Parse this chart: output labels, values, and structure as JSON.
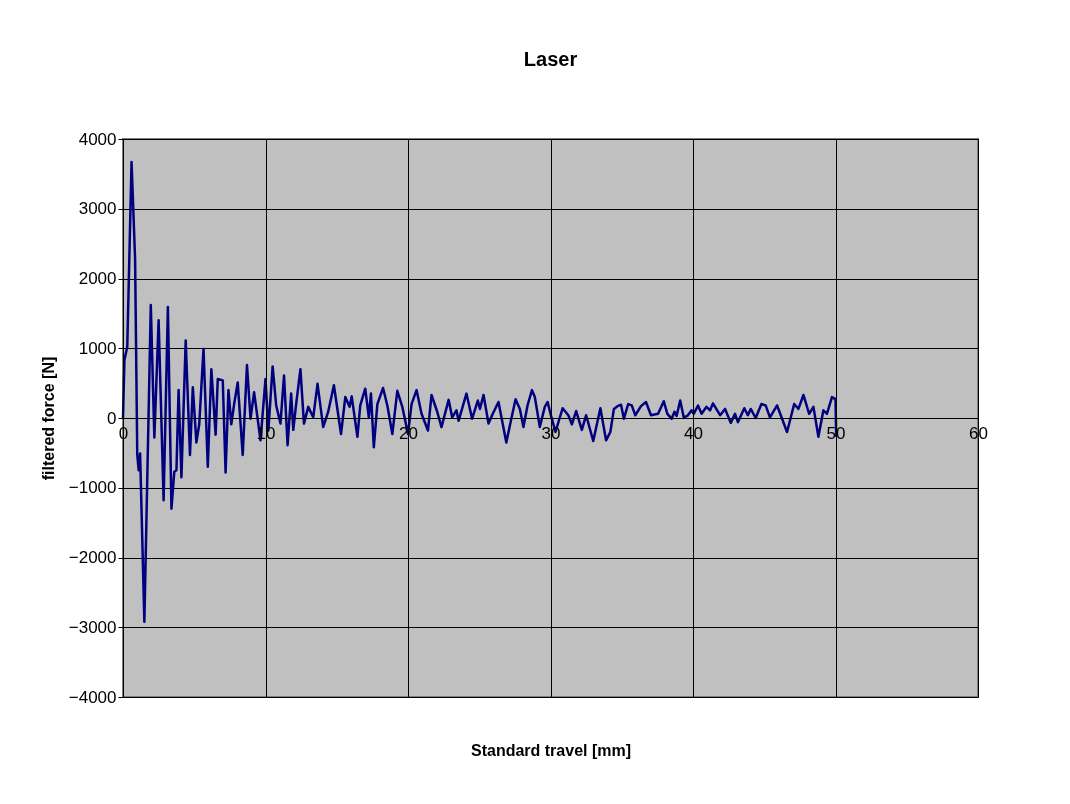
{
  "chart_data": {
    "type": "line",
    "title": "Laser",
    "xlabel": "Standard travel [mm]",
    "ylabel": "filtered force [N]",
    "xlim": [
      0,
      60
    ],
    "xticks": [
      0,
      10,
      20,
      30,
      40,
      50,
      60
    ],
    "ylim": [
      -4000,
      4000
    ],
    "yticks": [
      -4000,
      -3000,
      -2000,
      -1000,
      0,
      1000,
      2000,
      3000,
      4000
    ],
    "grid": true,
    "marker": "none",
    "line_style": "solid",
    "series": [
      {
        "color": "#000080",
        "x": [
          0,
          0.1,
          0.3,
          0.6,
          0.85,
          1.0,
          1.1,
          1.2,
          1.5,
          1.95,
          2.2,
          2.5,
          2.85,
          3.15,
          3.4,
          3.6,
          3.75,
          3.9,
          4.1,
          4.4,
          4.7,
          4.9,
          5.15,
          5.35,
          5.65,
          5.95,
          6.2,
          6.5,
          6.65,
          7.0,
          7.2,
          7.4,
          7.6,
          7.8,
          8.05,
          8.4,
          8.7,
          8.95,
          9.2,
          9.65,
          10.0,
          10.2,
          10.5,
          10.75,
          11.05,
          11.3,
          11.55,
          11.8,
          11.95,
          12.15,
          12.45,
          12.7,
          13.0,
          13.35,
          13.65,
          14.05,
          14.4,
          14.8,
          15.3,
          15.6,
          15.9,
          16.05,
          16.45,
          16.65,
          17.0,
          17.25,
          17.4,
          17.6,
          17.85,
          18.25,
          18.55,
          18.9,
          19.25,
          19.6,
          20.0,
          20.25,
          20.6,
          20.95,
          21.4,
          21.65,
          22.05,
          22.35,
          22.85,
          23.1,
          23.4,
          23.55,
          24.1,
          24.5,
          24.9,
          25.05,
          25.3,
          25.65,
          25.95,
          26.35,
          26.9,
          27.25,
          27.55,
          27.85,
          28.1,
          28.4,
          28.7,
          28.9,
          29.25,
          29.6,
          29.8,
          30.0,
          30.35,
          30.85,
          31.25,
          31.5,
          31.8,
          32.2,
          32.5,
          33.0,
          33.5,
          33.9,
          34.2,
          34.45,
          34.7,
          34.95,
          35.15,
          35.45,
          35.7,
          35.95,
          36.35,
          36.7,
          37.05,
          37.55,
          37.95,
          38.2,
          38.5,
          38.7,
          38.85,
          39.1,
          39.35,
          39.6,
          39.9,
          40.05,
          40.35,
          40.6,
          40.95,
          41.2,
          41.4,
          41.9,
          42.25,
          42.65,
          42.95,
          43.15,
          43.6,
          43.85,
          44.05,
          44.4,
          44.8,
          45.1,
          45.4,
          45.9,
          46.6,
          47.1,
          47.4,
          47.75,
          48.15,
          48.45,
          48.8,
          49.15,
          49.4,
          49.75,
          50.0,
          50.05
        ],
        "values": [
          0,
          830,
          1020,
          3670,
          2270,
          -520,
          -750,
          -510,
          -2920,
          1620,
          -280,
          1400,
          -1180,
          1590,
          -1300,
          -770,
          -750,
          400,
          -850,
          1110,
          -530,
          440,
          -350,
          -90,
          990,
          -700,
          700,
          -240,
          560,
          540,
          -780,
          400,
          -90,
          200,
          510,
          -530,
          760,
          -10,
          370,
          -320,
          560,
          -180,
          740,
          180,
          -80,
          610,
          -390,
          350,
          -170,
          200,
          700,
          -80,
          160,
          10,
          490,
          -130,
          90,
          470,
          -230,
          300,
          160,
          310,
          -270,
          180,
          420,
          10,
          350,
          -420,
          200,
          430,
          180,
          -230,
          390,
          160,
          -230,
          200,
          400,
          60,
          -180,
          330,
          90,
          -130,
          260,
          10,
          110,
          -40,
          350,
          -10,
          250,
          130,
          330,
          -80,
          60,
          230,
          -350,
          -10,
          270,
          130,
          -130,
          190,
          400,
          300,
          -130,
          160,
          230,
          60,
          -200,
          140,
          40,
          -90,
          100,
          -170,
          40,
          -330,
          140,
          -320,
          -200,
          130,
          170,
          190,
          -10,
          200,
          180,
          40,
          170,
          230,
          40,
          60,
          240,
          60,
          -10,
          90,
          30,
          250,
          10,
          30,
          110,
          60,
          180,
          60,
          160,
          110,
          210,
          40,
          130,
          -70,
          60,
          -60,
          140,
          40,
          130,
          0,
          200,
          180,
          10,
          180,
          -200,
          200,
          130,
          330,
          60,
          160,
          -270,
          110,
          60,
          300,
          270,
          -270
        ]
      }
    ]
  }
}
